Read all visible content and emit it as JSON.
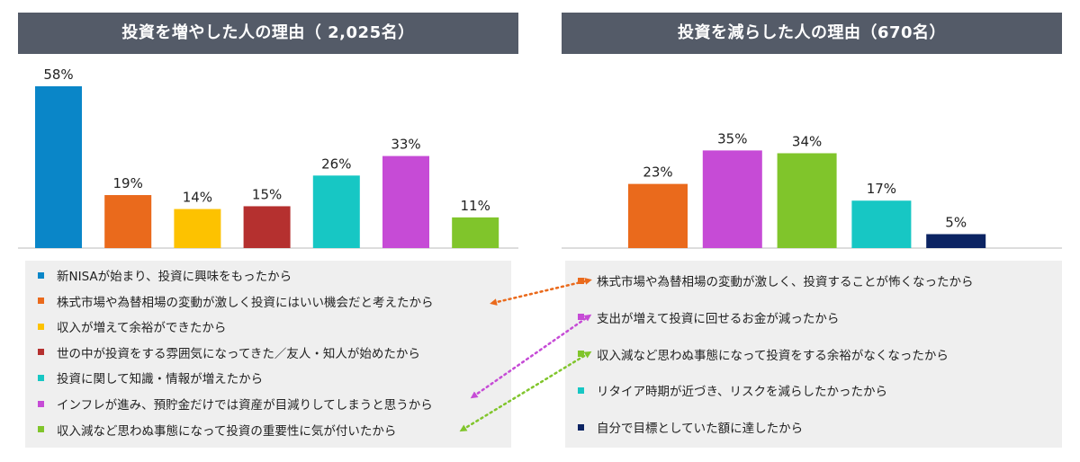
{
  "left": {
    "title": "投資を増やした人の理由（ 2,025名）",
    "legend": [
      {
        "label": "新NISAが始まり、投資に興味をもったから",
        "color": "#0a86c8"
      },
      {
        "label": "株式市場や為替相場の変動が激しく投資にはいい機会だと考えたから",
        "color": "#ea6a1c"
      },
      {
        "label": "収入が増えて余裕ができたから",
        "color": "#fdc200"
      },
      {
        "label": "世の中が投資をする雰囲気になってきた／友人・知人が始めたから",
        "color": "#b5302f"
      },
      {
        "label": "投資に関して知識・情報が増えたから",
        "color": "#17c7c4"
      },
      {
        "label": "インフレが進み、預貯金だけでは資産が目減りしてしまうと思うから",
        "color": "#c64bd6"
      },
      {
        "label": "収入減など思わぬ事態になって投資の重要性に気が付いたから",
        "color": "#80c52b"
      }
    ]
  },
  "right": {
    "title": "投資を減らした人の理由（670名）",
    "legend": [
      {
        "label": "株式市場や為替相場の変動が激しく、投資することが怖くなったから",
        "color": "#ea6a1c"
      },
      {
        "label": "支出が増えて投資に回せるお金が減ったから",
        "color": "#c64bd6"
      },
      {
        "label": "収入減など思わぬ事態になって投資をする余裕がなくなったから",
        "color": "#80c52b"
      },
      {
        "label": "リタイア時期が近づき、リスクを減らしたかったから",
        "color": "#17c7c4"
      },
      {
        "label": "自分で目標としていた額に達したから",
        "color": "#0c2463"
      }
    ]
  },
  "chart_data": [
    {
      "type": "bar",
      "title": "投資を増やした人の理由（ 2,025名）",
      "categories": [
        "新NISAが始まり、投資に興味をもったから",
        "株式市場や為替相場の変動が激しく投資にはいい機会だと考えたから",
        "収入が増えて余裕ができたから",
        "世の中が投資をする雰囲気になってきた／友人・知人が始めたから",
        "投資に関して知識・情報が増えたから",
        "インフレが進み、預貯金だけでは資産が目減りしてしまうと思うから",
        "収入減など思わぬ事態になって投資の重要性に気が付いたから"
      ],
      "values": [
        58,
        19,
        14,
        15,
        26,
        33,
        11
      ],
      "labels": [
        "58%",
        "19%",
        "14%",
        "15%",
        "26%",
        "33%",
        "11%"
      ],
      "colors": [
        "#0a86c8",
        "#ea6a1c",
        "#fdc200",
        "#b5302f",
        "#17c7c4",
        "#c64bd6",
        "#80c52b"
      ],
      "ylim": [
        0,
        58
      ],
      "grid": false,
      "legend": "bottom"
    },
    {
      "type": "bar",
      "title": "投資を減らした人の理由（670名）",
      "categories": [
        "株式市場や為替相場の変動が激しく、投資することが怖くなったから",
        "支出が増えて投資に回せるお金が減ったから",
        "収入減など思わぬ事態になって投資をする余裕がなくなったから",
        "リタイア時期が近づき、リスクを減らしたかったから",
        "自分で目標としていた額に達したから"
      ],
      "values": [
        23,
        35,
        34,
        17,
        5
      ],
      "labels": [
        "23%",
        "35%",
        "34%",
        "17%",
        "5%"
      ],
      "colors": [
        "#ea6a1c",
        "#c64bd6",
        "#80c52b",
        "#17c7c4",
        "#0c2463"
      ],
      "ylim": [
        0,
        58
      ],
      "grid": false,
      "legend": "bottom"
    }
  ]
}
